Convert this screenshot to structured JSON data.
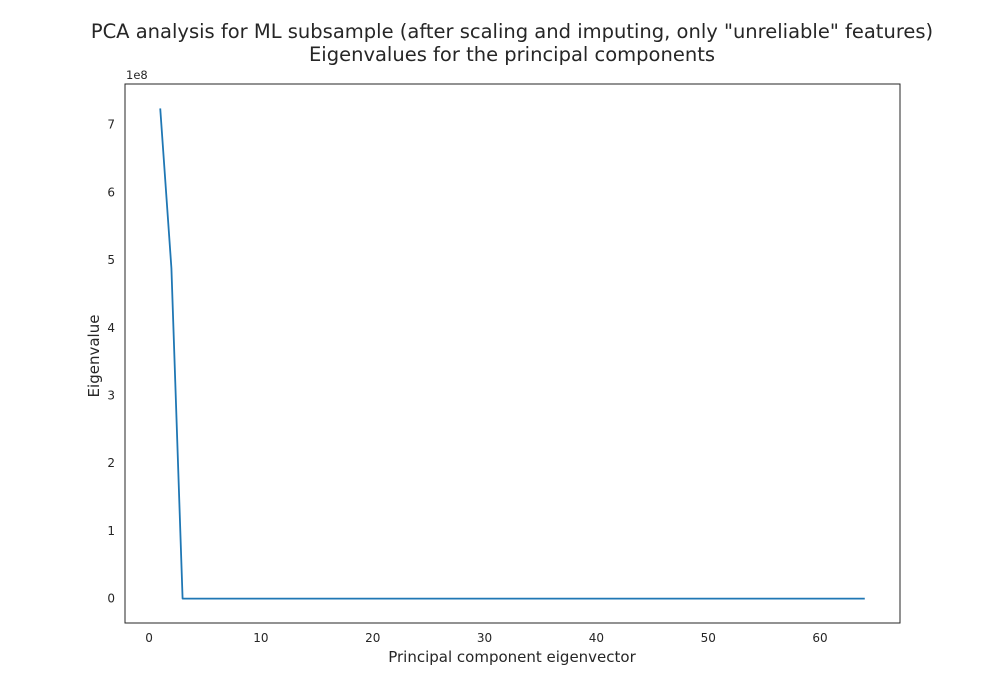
{
  "chart_data": {
    "type": "line",
    "title": "PCA analysis for ML subsample (after scaling and imputing, only \"unreliable\" features)",
    "subtitle": "Eigenvalues for the principal components",
    "xlabel": "Principal component eigenvector",
    "ylabel": "Eigenvalue",
    "y_offset_text": "1e8",
    "xlim": [
      -2.15,
      67.15
    ],
    "ylim": [
      -0.36,
      7.6
    ],
    "y_unit_multiplier": 100000000,
    "x_ticks": [
      0,
      10,
      20,
      30,
      40,
      50,
      60
    ],
    "y_ticks": [
      0,
      1,
      2,
      3,
      4,
      5,
      6,
      7
    ],
    "grid": false,
    "line_color": "#1f77b4",
    "series": [
      {
        "x": [
          1,
          2,
          3,
          64
        ],
        "values": [
          7.24,
          4.88,
          0.0,
          0.0
        ]
      }
    ]
  }
}
